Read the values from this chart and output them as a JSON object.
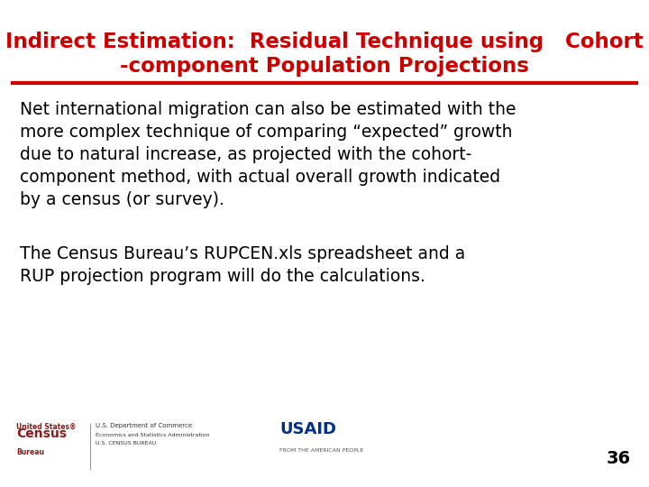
{
  "title_line1": "Indirect Estimation:  Residual Technique using   Cohort",
  "title_line2": "-component Population Projections",
  "title_color": "#CC0000",
  "title_fontsize": 16.5,
  "separator_color": "#CC0000",
  "separator_linewidth": 3,
  "body_para1": "Net international migration can also be estimated with the\nmore complex technique of comparing “expected” growth\ndue to natural increase, as projected with the cohort-\ncomponent method, with actual overall growth indicated\nby a census (or survey).",
  "body_para2": "The Census Bureau’s RUPCEN.xls spreadsheet and a\nRUP projection program will do the calculations.",
  "body_fontsize": 13.5,
  "body_color": "#000000",
  "page_number": "36",
  "page_number_fontsize": 14,
  "background_color": "#FFFFFF"
}
